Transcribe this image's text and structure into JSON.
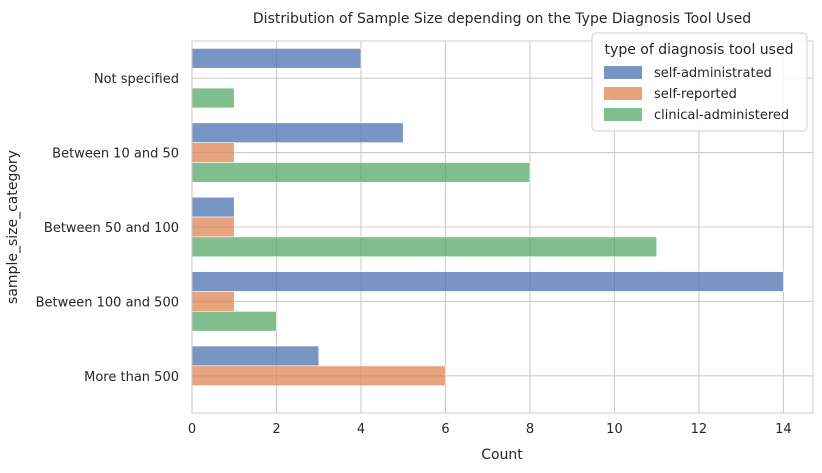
{
  "chart_data": {
    "type": "bar",
    "orientation": "horizontal",
    "title": "Distribution of Sample Size depending on the Type  Diagnosis Tool Used",
    "xlabel": "Count",
    "ylabel": "sample_size_category",
    "xlim": [
      0,
      14.7
    ],
    "xticks": [
      "0",
      "2",
      "4",
      "6",
      "8",
      "10",
      "12",
      "14"
    ],
    "grid": true,
    "categories": [
      "Not specified",
      "Between 10 and 50",
      "Between 50 and 100",
      "Between 100 and 500",
      "More than 500"
    ],
    "series": [
      {
        "name": "self-administrated",
        "color": "#4c72b0",
        "values": [
          4,
          5,
          1,
          14,
          3
        ]
      },
      {
        "name": "self-reported",
        "color": "#dd8452",
        "values": [
          0,
          1,
          1,
          1,
          6
        ]
      },
      {
        "name": "clinical-administered",
        "color": "#55a868",
        "values": [
          1,
          8,
          11,
          2,
          0
        ]
      }
    ],
    "legend": {
      "title": "type of diagnosis tool used",
      "placement": "top-right"
    }
  }
}
